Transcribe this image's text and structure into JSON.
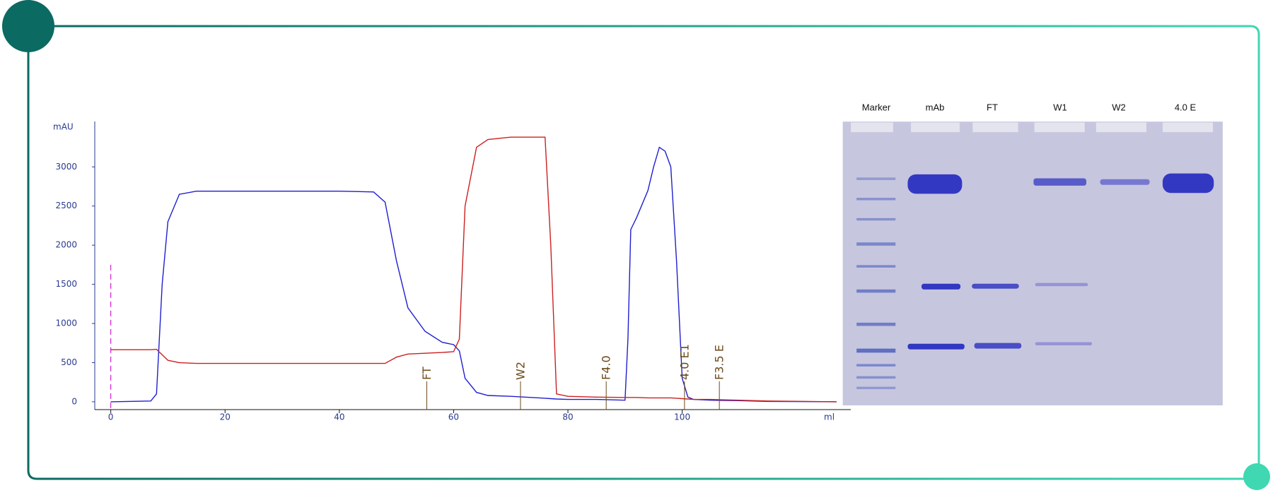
{
  "chart_data": {
    "type": "line",
    "y_label": "mAU",
    "x_label": "ml",
    "x": [
      0,
      7,
      8,
      9,
      10,
      12,
      15,
      20,
      30,
      40,
      46,
      48,
      50,
      52,
      55,
      58,
      60,
      61,
      62,
      64,
      66,
      70,
      75,
      76,
      77,
      78,
      80,
      85,
      90,
      90.5,
      91,
      92,
      94,
      95,
      96,
      97,
      98,
      99,
      100,
      101,
      102,
      105,
      110,
      115,
      127
    ],
    "series": [
      {
        "color": "#1f1fd0",
        "values": [
          0,
          10,
          100,
          1500,
          2300,
          2650,
          2690,
          2690,
          2690,
          2690,
          2680,
          2550,
          1800,
          1200,
          900,
          760,
          730,
          650,
          300,
          120,
          80,
          70,
          50,
          45,
          40,
          35,
          30,
          30,
          20,
          800,
          2200,
          2350,
          2700,
          3000,
          3250,
          3200,
          3000,
          1800,
          300,
          60,
          30,
          20,
          15,
          5,
          0
        ]
      },
      {
        "color": "#cc2020",
        "values": [
          665,
          665,
          670,
          600,
          530,
          500,
          490,
          490,
          490,
          490,
          490,
          490,
          570,
          610,
          620,
          630,
          640,
          800,
          2500,
          3250,
          3350,
          3380,
          3380,
          3380,
          2000,
          100,
          70,
          60,
          55,
          55,
          55,
          55,
          50,
          50,
          50,
          50,
          50,
          45,
          40,
          35,
          30,
          30,
          20,
          10,
          0
        ]
      }
    ],
    "injection_x": 0,
    "fractions": [
      {
        "x": 55.3,
        "label": "FT"
      },
      {
        "x": 71.7,
        "label": "W2"
      },
      {
        "x": 86.7,
        "label": "F4.0"
      },
      {
        "x": 100.4,
        "label": "4.0 E1"
      },
      {
        "x": 106.5,
        "label": "F3.5 E"
      }
    ],
    "xlim": [
      -2.8,
      129.5
    ],
    "xticks": [
      0,
      20,
      40,
      60,
      80,
      100
    ],
    "ylim": [
      -100,
      3580
    ],
    "yticks": [
      0,
      500,
      1000,
      1500,
      2000,
      2500,
      3000
    ]
  },
  "gel": {
    "lanes": [
      "Marker",
      "mAb",
      "FT",
      "W1",
      "W2",
      "4.0 E"
    ]
  }
}
